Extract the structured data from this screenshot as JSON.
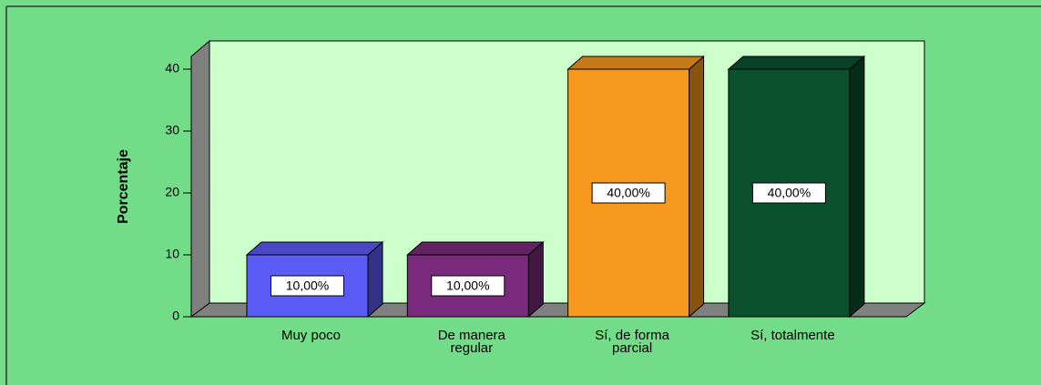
{
  "chart_data": {
    "type": "bar3d",
    "y_label": "Porcentaje",
    "categories": [
      "Muy poco",
      "De manera regular",
      "Sí, de forma parcial",
      "Sí, totalmente"
    ],
    "values": [
      10,
      10,
      40,
      40
    ],
    "value_labels": [
      "10,00%",
      "10,00%",
      "40,00%",
      "40,00%"
    ],
    "colors": [
      "#5b5bf5",
      "#7a2a7c",
      "#f7991f",
      "#0b5130"
    ],
    "ylim": [
      0,
      42
    ],
    "yticks": [
      0,
      10,
      20,
      30,
      40
    ]
  }
}
